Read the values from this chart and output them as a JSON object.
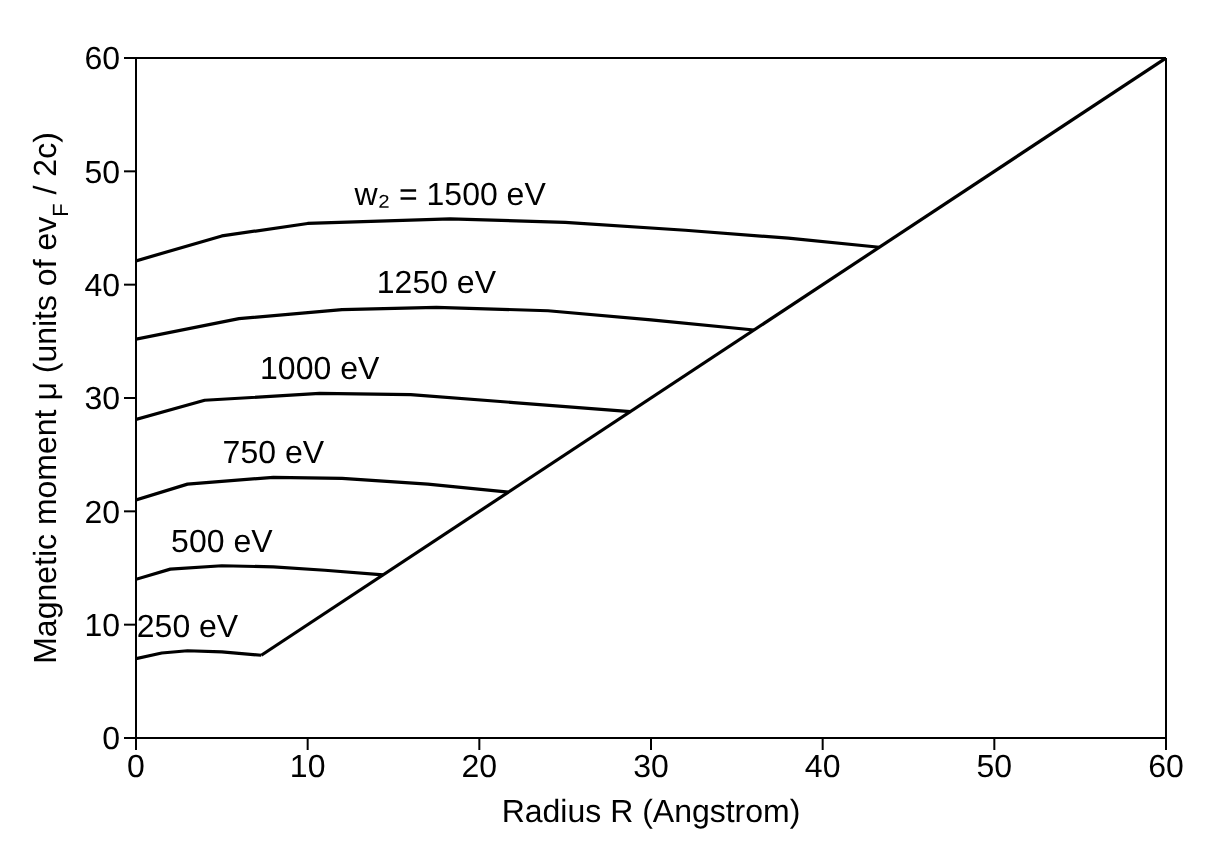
{
  "chart_data": {
    "type": "line",
    "xlabel": "Radius R  (Angstrom)",
    "ylabel": "Magnetic moment μ  (units of ev$_{F}$ / 2c)",
    "xlim": [
      0,
      60
    ],
    "xticks": [
      0,
      10,
      20,
      30,
      40,
      50,
      60
    ],
    "ylim": [
      0,
      60
    ],
    "yticks": [
      0,
      10,
      20,
      30,
      40,
      50,
      60
    ],
    "marker": "none",
    "line_style": "solid",
    "series": [
      {
        "name": "250 eV",
        "color": "#000000",
        "x": [
          0,
          1.5,
          3,
          5,
          7.3
        ],
        "values": [
          7.0,
          7.5,
          7.7,
          7.6,
          7.3
        ]
      },
      {
        "name": "500 eV",
        "color": "#000000",
        "x": [
          0,
          2,
          5,
          8,
          11,
          14.4
        ],
        "values": [
          14.0,
          14.9,
          15.2,
          15.1,
          14.8,
          14.4
        ]
      },
      {
        "name": "750 eV",
        "color": "#000000",
        "x": [
          0,
          3,
          8,
          12,
          17,
          21.7
        ],
        "values": [
          21.0,
          22.4,
          23.0,
          22.9,
          22.4,
          21.7
        ]
      },
      {
        "name": "1000 eV",
        "color": "#000000",
        "x": [
          0,
          4,
          10.7,
          16,
          22,
          28.8
        ],
        "values": [
          28.1,
          29.8,
          30.4,
          30.3,
          29.6,
          28.8
        ]
      },
      {
        "name": "1250 eV",
        "color": "#000000",
        "x": [
          0,
          6,
          12,
          17.5,
          24,
          30,
          36.0
        ],
        "values": [
          35.2,
          37.0,
          37.8,
          38.0,
          37.7,
          36.9,
          36.0
        ]
      },
      {
        "name": "w₂ = 1500 eV",
        "color": "#000000",
        "x": [
          0,
          5,
          10,
          18.3,
          25,
          32,
          38,
          43.3
        ],
        "values": [
          42.1,
          44.3,
          45.4,
          45.8,
          45.5,
          44.8,
          44.1,
          43.3
        ]
      },
      {
        "color": "#000000",
        "x": [
          7.3,
          60
        ],
        "values": [
          7.3,
          60
        ]
      }
    ]
  }
}
